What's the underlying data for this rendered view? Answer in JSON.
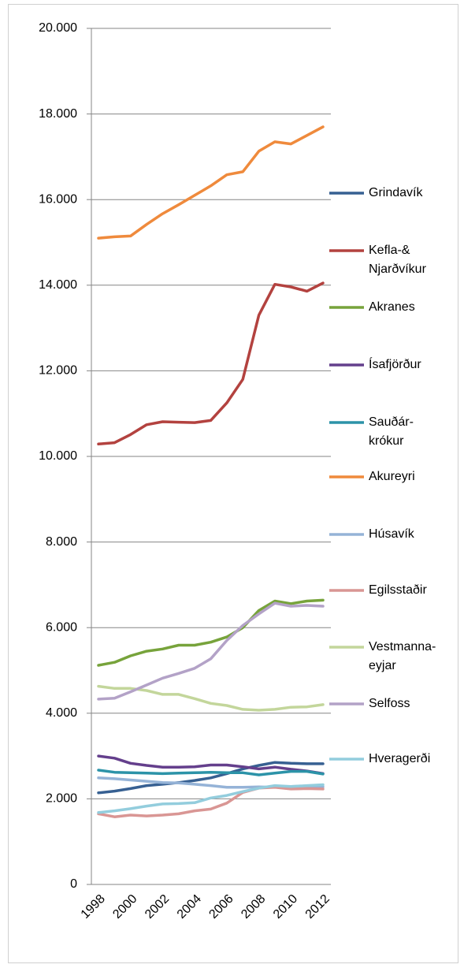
{
  "chart_data": {
    "type": "line",
    "categories": [
      "1998",
      null,
      "2000",
      null,
      "2002",
      null,
      "2004",
      null,
      "2006",
      null,
      "2008",
      null,
      "2010",
      null,
      "2012"
    ],
    "ylim": [
      0,
      20000
    ],
    "yticks": [
      0,
      {
        "value": 2000,
        "label": "2.000"
      },
      {
        "value": 4000,
        "label": "4.000"
      },
      {
        "value": 6000,
        "label": "6.000"
      },
      {
        "value": 8000,
        "label": "8.000"
      },
      {
        "value": 10000,
        "label": "10.000"
      },
      {
        "value": 12000,
        "label": "12.000"
      },
      {
        "value": 14000,
        "label": "14.000"
      },
      {
        "value": 16000,
        "label": "16.000"
      },
      {
        "value": 18000,
        "label": "18.000"
      },
      {
        "value": 20000,
        "label": "20.000"
      }
    ],
    "grid": true,
    "legend": "right",
    "series": [
      {
        "name": "Grindavík",
        "color": "#376092",
        "values": [
          2140,
          2180,
          2240,
          2310,
          2340,
          2380,
          2430,
          2490,
          2590,
          2700,
          2780,
          2850,
          2830,
          2820,
          2820
        ]
      },
      {
        "name": "Kefla-& Njarðvíkur",
        "color": "#b3423f",
        "values": [
          10290,
          10320,
          10510,
          10740,
          10810,
          10800,
          10790,
          10840,
          11250,
          11800,
          13300,
          14020,
          13960,
          13860,
          14050
        ]
      },
      {
        "name": "Akranes",
        "color": "#77a33b",
        "values": [
          5120,
          5190,
          5340,
          5450,
          5500,
          5590,
          5590,
          5660,
          5780,
          6000,
          6400,
          6620,
          6560,
          6620,
          6640
        ]
      },
      {
        "name": "Ísafjörður",
        "color": "#643f8c",
        "values": [
          3000,
          2950,
          2830,
          2780,
          2740,
          2740,
          2750,
          2790,
          2790,
          2750,
          2700,
          2740,
          2690,
          2650,
          2590
        ]
      },
      {
        "name": "Sauðár- krókur",
        "color": "#2c93a8",
        "values": [
          2670,
          2620,
          2610,
          2600,
          2590,
          2600,
          2610,
          2620,
          2610,
          2610,
          2560,
          2600,
          2640,
          2640,
          2580
        ]
      },
      {
        "name": "Akureyri",
        "color": "#ef8a3c",
        "values": [
          15100,
          15130,
          15150,
          15420,
          15670,
          15880,
          16100,
          16320,
          16580,
          16650,
          17130,
          17350,
          17300,
          17500,
          17700
        ]
      },
      {
        "name": "Húsavík",
        "color": "#95b3d7",
        "values": [
          2490,
          2470,
          2440,
          2410,
          2380,
          2370,
          2340,
          2310,
          2270,
          2270,
          2280,
          2270,
          2290,
          2300,
          2280
        ]
      },
      {
        "name": "Egilsstaðir",
        "color": "#d99694",
        "values": [
          1650,
          1580,
          1620,
          1600,
          1620,
          1650,
          1720,
          1760,
          1900,
          2150,
          2250,
          2270,
          2230,
          2240,
          2230
        ]
      },
      {
        "name": "Vestmanna- eyjar",
        "color": "#c3d69b",
        "values": [
          4630,
          4580,
          4580,
          4530,
          4440,
          4440,
          4340,
          4230,
          4180,
          4090,
          4070,
          4090,
          4140,
          4150,
          4200
        ]
      },
      {
        "name": "Selfoss",
        "color": "#b3a2c7",
        "values": [
          4330,
          4350,
          4500,
          4660,
          4820,
          4930,
          5050,
          5270,
          5700,
          6050,
          6320,
          6570,
          6500,
          6520,
          6500
        ]
      },
      {
        "name": "Hveragerði",
        "color": "#93cddd",
        "values": [
          1680,
          1720,
          1770,
          1830,
          1880,
          1890,
          1910,
          2020,
          2080,
          2170,
          2250,
          2310,
          2290,
          2310,
          2330
        ]
      }
    ]
  }
}
